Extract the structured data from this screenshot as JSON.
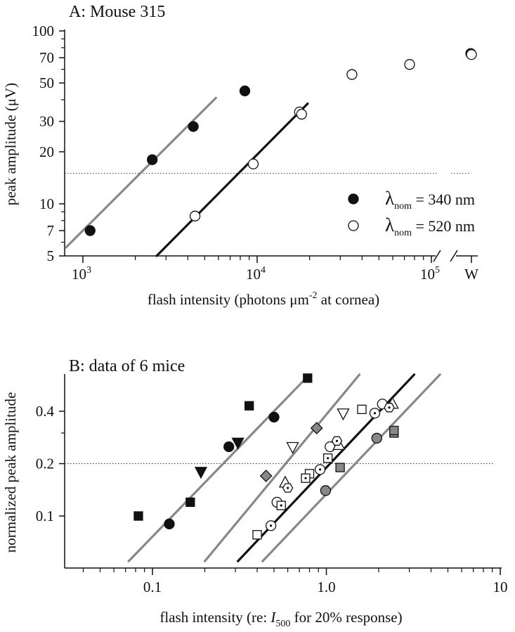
{
  "chart_data": [
    {
      "type": "scatter",
      "panel_title": "A: Mouse 315",
      "xlabel": "flash intensity (photons μm",
      "xlabel_sup": "-2",
      "xlabel_tail": " at cornea)",
      "ylabel": "peak amplitude (μV)",
      "xscale": "log",
      "yscale": "log",
      "xlim": [
        800,
        200000
      ],
      "ylim": [
        5,
        100
      ],
      "x_ticks": [
        {
          "base": "10",
          "exp": "3"
        },
        {
          "base": "10",
          "exp": "4"
        },
        {
          "base": "10",
          "exp": "5"
        }
      ],
      "x_extra_tick": "W",
      "y_ticks": [
        "5",
        "7",
        "10",
        "20",
        "30",
        "50",
        "70",
        "100"
      ],
      "threshold_line": 15,
      "legend": [
        {
          "symbol": "λ",
          "sub": "nom",
          "text": " = 340 nm",
          "marker": "filled"
        },
        {
          "symbol": "λ",
          "sub": "nom",
          "text": " = 520 nm",
          "marker": "open"
        }
      ],
      "series": [
        {
          "name": "λnom = 340 nm",
          "marker": "filled-circle",
          "points": [
            [
              1100,
              7
            ],
            [
              2500,
              18
            ],
            [
              4300,
              28
            ],
            [
              8500,
              45
            ]
          ]
        },
        {
          "name": "λnom = 520 nm",
          "marker": "open-circle",
          "points": [
            [
              4400,
              8.5
            ],
            [
              9500,
              17
            ],
            [
              17500,
              34
            ],
            [
              18000,
              33
            ],
            [
              35000,
              56
            ],
            [
              75000,
              64
            ]
          ]
        }
      ],
      "white_light": {
        "filled": 74,
        "open": 73
      },
      "fit_lines": [
        {
          "color": "#888888",
          "from": [
            800,
            5.6
          ],
          "to": [
            5800,
            41
          ]
        },
        {
          "color": "#111111",
          "from": [
            2650,
            5
          ],
          "to": [
            19500,
            38
          ]
        }
      ]
    },
    {
      "type": "scatter",
      "panel_title": "B: data of 6 mice",
      "xlabel": "flash intensity (re: ",
      "xlabel_italic": "I",
      "xlabel_sub": "500",
      "xlabel_tail": " for 20% response)",
      "ylabel": "normalized peak amplitude",
      "xscale": "log",
      "yscale": "log",
      "xlim": [
        0.03,
        10
      ],
      "ylim": [
        0.045,
        0.7
      ],
      "x_ticks": [
        "0.1",
        "1.0",
        "10"
      ],
      "y_ticks": [
        "0.1",
        "0.2",
        "0.4"
      ],
      "threshold_line": 0.2,
      "series": [
        {
          "marker": "filled-square",
          "points": [
            [
              0.083,
              0.1
            ],
            [
              0.165,
              0.12
            ],
            [
              0.36,
              0.43
            ],
            [
              0.78,
              0.62
            ]
          ]
        },
        {
          "marker": "filled-circle",
          "points": [
            [
              0.125,
              0.09
            ],
            [
              0.275,
              0.25
            ],
            [
              0.5,
              0.37
            ]
          ]
        },
        {
          "marker": "filled-triangle-down",
          "points": [
            [
              0.19,
              0.18
            ],
            [
              0.31,
              0.265
            ]
          ]
        },
        {
          "marker": "gray-diamond",
          "points": [
            [
              0.45,
              0.17
            ],
            [
              0.88,
              0.32
            ]
          ]
        },
        {
          "marker": "open-triangle-down",
          "points": [
            [
              0.64,
              0.25
            ],
            [
              1.25,
              0.39
            ]
          ]
        },
        {
          "marker": "open-square",
          "points": [
            [
              0.4,
              0.078
            ],
            [
              0.8,
              0.175
            ],
            [
              1.6,
              0.41
            ]
          ]
        },
        {
          "marker": "open-circle",
          "points": [
            [
              0.52,
              0.12
            ],
            [
              1.05,
              0.25
            ],
            [
              2.1,
              0.44
            ]
          ]
        },
        {
          "marker": "dotted-circle",
          "points": [
            [
              0.48,
              0.088
            ],
            [
              0.92,
              0.185
            ],
            [
              1.9,
              0.39
            ]
          ]
        },
        {
          "marker": "open-triangle-up",
          "points": [
            [
              0.58,
              0.155
            ],
            [
              1.18,
              0.255
            ],
            [
              2.4,
              0.44
            ]
          ]
        },
        {
          "marker": "dotted-square",
          "points": [
            [
              0.55,
              0.115
            ],
            [
              0.76,
              0.165
            ],
            [
              1.02,
              0.215
            ]
          ]
        },
        {
          "marker": "dotted-hexagon",
          "points": [
            [
              0.6,
              0.145
            ],
            [
              1.15,
              0.27
            ],
            [
              2.3,
              0.42
            ]
          ]
        },
        {
          "marker": "gray-circle",
          "points": [
            [
              0.99,
              0.14
            ],
            [
              1.95,
              0.28
            ]
          ]
        },
        {
          "marker": "gray-square",
          "points": [
            [
              1.2,
              0.19
            ],
            [
              2.45,
              0.3
            ],
            [
              2.45,
              0.31
            ]
          ]
        }
      ],
      "fit_lines": [
        {
          "color": "#888888",
          "from": [
            0.073,
            0.055
          ],
          "to": [
            0.8,
            0.65
          ]
        },
        {
          "color": "#888888",
          "from": [
            0.2,
            0.055
          ],
          "to": [
            1.55,
            0.65
          ]
        },
        {
          "color": "#111111",
          "from": [
            0.31,
            0.055
          ],
          "to": [
            3.2,
            0.65
          ]
        },
        {
          "color": "#888888",
          "from": [
            0.43,
            0.055
          ],
          "to": [
            4.5,
            0.65
          ]
        }
      ]
    }
  ]
}
